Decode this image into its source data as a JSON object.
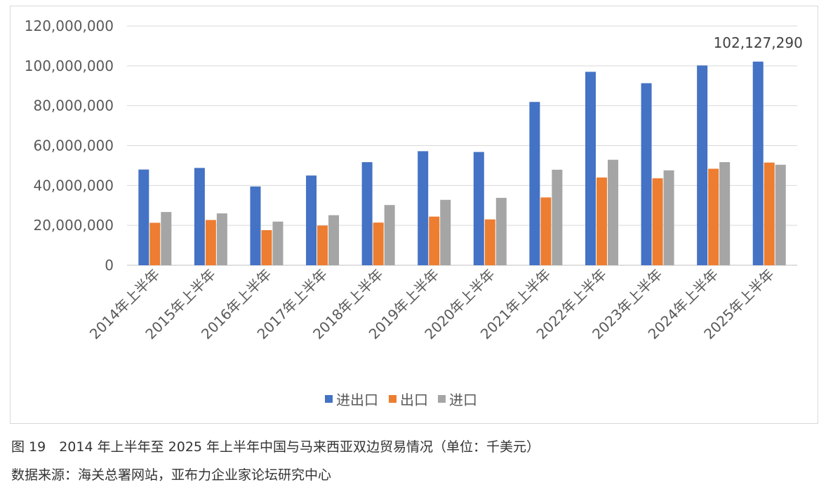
{
  "chart_data": {
    "type": "bar",
    "categories": [
      "2014年上半年",
      "2015年上半年",
      "2016年上半年",
      "2017年上半年",
      "2018年上半年",
      "2019年上半年",
      "2020年上半年",
      "2021年上半年",
      "2022年上半年",
      "2023年上半年",
      "2024年上半年",
      "2025年上半年"
    ],
    "series": [
      {
        "name": "进出口",
        "color": "#4472c4",
        "values": [
          48000000,
          48800000,
          39500000,
          45000000,
          51700000,
          57200000,
          56800000,
          81900000,
          97000000,
          91300000,
          100200000,
          102127290
        ]
      },
      {
        "name": "出口",
        "color": "#ed7d31",
        "values": [
          21300000,
          22700000,
          17600000,
          19900000,
          21400000,
          24400000,
          23000000,
          34000000,
          44000000,
          43600000,
          48400000,
          51500000
        ]
      },
      {
        "name": "进口",
        "color": "#a5a5a5",
        "values": [
          26700000,
          26000000,
          21900000,
          25100000,
          30200000,
          32800000,
          33800000,
          47900000,
          52900000,
          47600000,
          51700000,
          50400000
        ]
      }
    ],
    "ylim": [
      0,
      120000000
    ],
    "yticks": [
      "0",
      "20,000,000",
      "40,000,000",
      "60,000,000",
      "80,000,000",
      "100,000,000",
      "120,000,000"
    ],
    "data_labels": [
      {
        "series": 0,
        "index": 11,
        "text": "102,127,290"
      }
    ],
    "grid": true,
    "legend_position": "bottom",
    "title": "",
    "xlabel": "",
    "ylabel": ""
  },
  "caption": {
    "figure": "图 19　2014 年上半年至 2025 年上半年中国与马来西亚双边贸易情况（单位：千美元）",
    "source": "数据来源：海关总署网站，亚布力企业家论坛研究中心"
  }
}
